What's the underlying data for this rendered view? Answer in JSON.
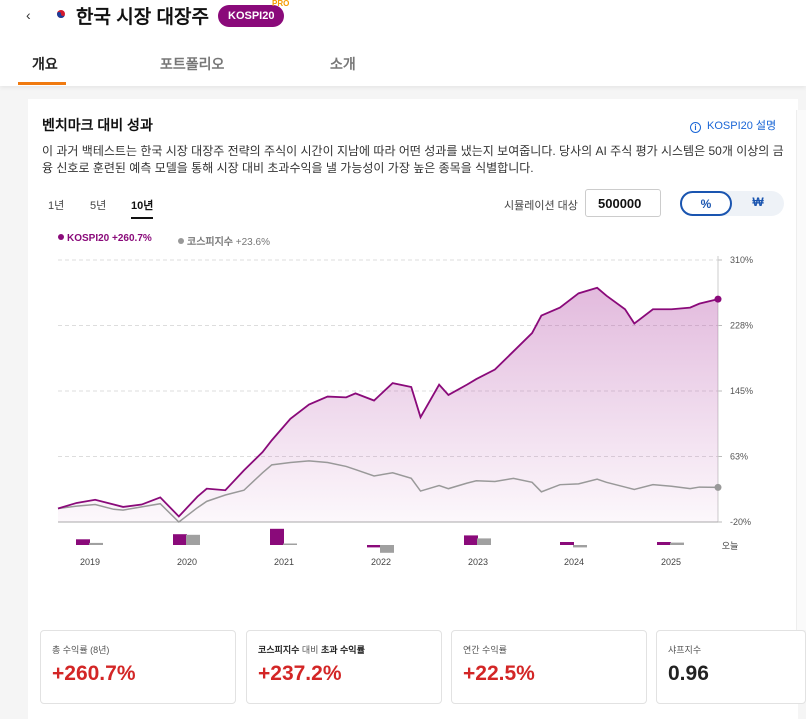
{
  "header": {
    "back_icon": "chevron-left-icon",
    "flag_icon": "korea-flag-icon",
    "title": "한국 시장 대장주",
    "badge": "KOSPI20",
    "pro_tag": "PRO"
  },
  "tabs": [
    {
      "label": "개요",
      "active": true
    },
    {
      "label": "포트폴리오",
      "active": false
    },
    {
      "label": "소개",
      "active": false
    }
  ],
  "section": {
    "title": "벤치마크 대비 성과",
    "info_link": "KOSPI20 설명",
    "description": "이 과거 백테스트는 한국 시장 대장주 전략의 주식이 시간이 지남에 따라 어떤 성과를 냈는지 보여줍니다. 당사의 AI 주식 평가 시스템은 50개 이상의 금융 신호로 훈련된 예측 모델을 통해 시장 대비 초과수익을 낼 가능성이 가장 높은 종목을 식별합니다."
  },
  "controls": {
    "periods": [
      {
        "label": "1년",
        "active": false
      },
      {
        "label": "5년",
        "active": false
      },
      {
        "label": "10년",
        "active": true
      }
    ],
    "simulation_label": "시뮬레이션 대상",
    "simulation_value": "500000",
    "toggle_options": [
      {
        "label": "%",
        "active": true
      },
      {
        "label": "₩",
        "active": false
      }
    ]
  },
  "legend": {
    "primary_name": "KOSPI20",
    "primary_value": "+260.7%",
    "benchmark_name": "코스피지수",
    "benchmark_value": "+23.6%"
  },
  "chart_data": {
    "type": "area",
    "y_ticks": [
      "310%",
      "228%",
      "145%",
      "63%",
      "-20%"
    ],
    "ylim": [
      -20,
      310
    ],
    "x_labels": [
      "2019",
      "2020",
      "2021",
      "2022",
      "2023",
      "2024",
      "2025",
      "오늘"
    ],
    "series": [
      {
        "name": "KOSPI20",
        "color": "#8a0a7a",
        "x": [
          2018.7,
          2018.9,
          2019.1,
          2019.3,
          2019.4,
          2019.6,
          2019.8,
          2020.0,
          2020.2,
          2020.3,
          2020.5,
          2020.7,
          2020.9,
          2021.0,
          2021.2,
          2021.4,
          2021.6,
          2021.8,
          2021.9,
          2022.1,
          2022.3,
          2022.5,
          2022.6,
          2022.8,
          2022.9,
          2023.1,
          2023.2,
          2023.4,
          2023.6,
          2023.8,
          2023.9,
          2024.1,
          2024.3,
          2024.5,
          2024.6,
          2024.8,
          2024.9,
          2025.1,
          2025.3,
          2025.5,
          2025.6,
          2025.8
        ],
        "values": [
          -3,
          4,
          8,
          2,
          -1,
          2,
          11,
          -13,
          12,
          22,
          20,
          45,
          68,
          83,
          110,
          128,
          138,
          137,
          142,
          133,
          155,
          150,
          112,
          153,
          140,
          153,
          160,
          172,
          195,
          218,
          240,
          250,
          268,
          275,
          265,
          248,
          230,
          248,
          248,
          250,
          255,
          260.7
        ]
      },
      {
        "name": "코스피지수",
        "color": "#999999",
        "x": [
          2018.7,
          2018.9,
          2019.1,
          2019.3,
          2019.4,
          2019.6,
          2019.8,
          2020.0,
          2020.2,
          2020.3,
          2020.5,
          2020.7,
          2020.9,
          2021.0,
          2021.2,
          2021.4,
          2021.6,
          2021.8,
          2021.9,
          2022.1,
          2022.3,
          2022.5,
          2022.6,
          2022.8,
          2022.9,
          2023.1,
          2023.2,
          2023.4,
          2023.6,
          2023.8,
          2023.9,
          2024.1,
          2024.3,
          2024.5,
          2024.6,
          2024.8,
          2024.9,
          2025.1,
          2025.3,
          2025.5,
          2025.6,
          2025.8
        ],
        "values": [
          -3,
          0,
          2,
          -4,
          -5,
          -1,
          3,
          -20,
          -2,
          6,
          14,
          20,
          42,
          52,
          55,
          57,
          55,
          50,
          46,
          38,
          42,
          35,
          19,
          26,
          22,
          29,
          32,
          31,
          35,
          30,
          18,
          27,
          28,
          34,
          30,
          24,
          21,
          27,
          25,
          22,
          24,
          23.6
        ]
      }
    ],
    "annual_bars": [
      {
        "year": "2019",
        "kospi20": 9.5,
        "benchmark": 3.5
      },
      {
        "year": "2020",
        "kospi20": 18,
        "benchmark": 17
      },
      {
        "year": "2021",
        "kospi20": 27,
        "benchmark": 2.5
      },
      {
        "year": "2022",
        "kospi20": -4,
        "benchmark": -13
      },
      {
        "year": "2023",
        "kospi20": 16,
        "benchmark": 11
      },
      {
        "year": "2024",
        "kospi20": 5,
        "benchmark": -4
      },
      {
        "year": "2025",
        "kospi20": 5,
        "benchmark": 4
      }
    ]
  },
  "stats": [
    {
      "label": "총 수익률 (8년)",
      "label_bold": "",
      "value": "+260.7%",
      "tone": "positive"
    },
    {
      "label": " 대비 ",
      "label_bold": "코스피지수",
      "label_bold_after": "초과 수익률",
      "value": "+237.2%",
      "tone": "positive"
    },
    {
      "label": "연간 수익률",
      "label_bold": "",
      "value": "+22.5%",
      "tone": "positive"
    },
    {
      "label": "샤프지수",
      "label_bold": "",
      "value": "0.96",
      "tone": "neutral"
    }
  ]
}
